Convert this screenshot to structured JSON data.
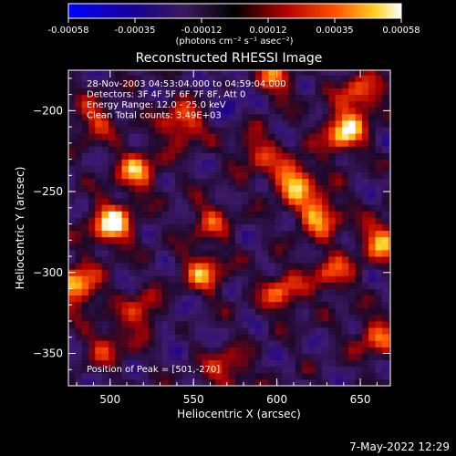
{
  "chart_data": {
    "type": "heatmap",
    "title": "Reconstructed RHESSI Image",
    "xlabel": "Heliocentric X (arcsec)",
    "ylabel": "Heliocentric Y (arcsec)",
    "xlim": [
      475,
      668
    ],
    "ylim": [
      -370,
      -175
    ],
    "x_ticks": [
      500,
      550,
      600,
      650
    ],
    "y_ticks": [
      -200,
      -250,
      -300,
      -350
    ],
    "colorbar": {
      "label": "(photons cm⁻² s⁻¹ asec⁻²)",
      "ticks": [
        "-0.00058",
        "-0.00035",
        "-0.00012",
        "0.00012",
        "0.00035",
        "0.00058"
      ],
      "min": -0.00058,
      "max": 0.00058
    },
    "annotations": [
      "28-Nov-2003 04:53:04.000 to 04:59:04.000",
      "Detectors: 3F 4F 5F 6F 7F 8F, Att 0",
      "Energy Range: 12.0 - 25.0 keV",
      "Clean     Total counts: 3.49E+03"
    ],
    "peak_label": "Position of Peak = [501,-270]",
    "footer_date": "7-May-2022 12:29",
    "sources": [
      {
        "x": 501,
        "y": -270,
        "value": 0.00058
      },
      {
        "x": 480,
        "y": -308,
        "value": 0.0005
      },
      {
        "x": 640,
        "y": -213,
        "value": 0.00052
      },
      {
        "x": 610,
        "y": -243,
        "value": 0.00048
      },
      {
        "x": 516,
        "y": -237,
        "value": 0.0004
      },
      {
        "x": 625,
        "y": -264,
        "value": 0.00045
      },
      {
        "x": 663,
        "y": -280,
        "value": 0.00042
      },
      {
        "x": 556,
        "y": -300,
        "value": 0.00035
      },
      {
        "x": 543,
        "y": -208,
        "value": 0.00036
      },
      {
        "x": 598,
        "y": -180,
        "value": 0.0003
      },
      {
        "x": 650,
        "y": -190,
        "value": 0.00034
      },
      {
        "x": 520,
        "y": -325,
        "value": 0.0003
      },
      {
        "x": 603,
        "y": -312,
        "value": 0.00033
      },
      {
        "x": 660,
        "y": -340,
        "value": 0.0003
      },
      {
        "x": 570,
        "y": -360,
        "value": 0.00026
      },
      {
        "x": 490,
        "y": -205,
        "value": 0.00025
      },
      {
        "x": 560,
        "y": -268,
        "value": 0.00022
      },
      {
        "x": 588,
        "y": -225,
        "value": 0.00024
      },
      {
        "x": 633,
        "y": -300,
        "value": 0.00028
      },
      {
        "x": 498,
        "y": -345,
        "value": 0.0002
      },
      {
        "x": 575,
        "y": -190,
        "value": -0.0003
      },
      {
        "x": 537,
        "y": -330,
        "value": -0.00025
      }
    ]
  }
}
